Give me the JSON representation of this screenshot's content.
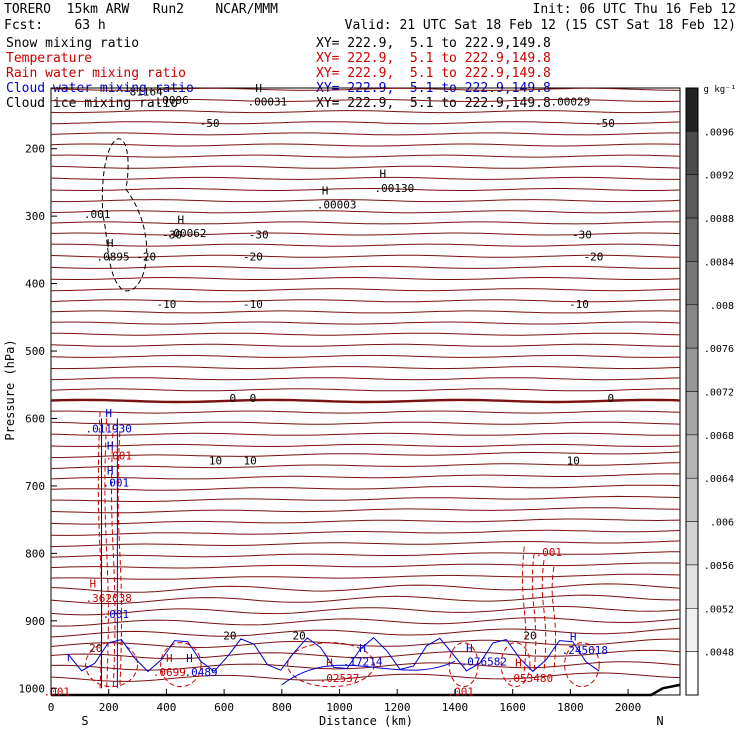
{
  "header": {
    "model": "TORERO  15km ARW   Run2    NCAR/MMM",
    "init": "Init: 06 UTC Thu 16 Feb 12",
    "fcst": "Fcst:    63 h",
    "valid": "Valid: 21 UTC Sat 18 Feb 12 (15 CST Sat 18 Feb 12)",
    "fields": [
      {
        "name": "Snow mixing ratio",
        "xy": "XY= 222.9,  5.1 to 222.9,149.8",
        "color": "#000000"
      },
      {
        "name": "Temperature",
        "xy": "XY= 222.9,  5.1 to 222.9,149.8",
        "color": "#cc0000"
      },
      {
        "name": "Rain water mixing ratio",
        "xy": "XY= 222.9,  5.1 to 222.9,149.8",
        "color": "#cc0000"
      },
      {
        "name": "Cloud water mixing ratio",
        "xy": "XY= 222.9,  5.1 to 222.9,149.8",
        "color": "#0000cc"
      },
      {
        "name": "Cloud ice mixing ratio",
        "xy": "XY= 222.9,  5.1 to 222.9,149.8",
        "color": "#000000"
      }
    ]
  },
  "chart_data": {
    "type": "contour",
    "ylabel": "Pressure (hPa)",
    "xlabel": "Distance (km)",
    "x_start_label": "S",
    "x_end_label": "N",
    "xlim": [
      0,
      2180
    ],
    "ylim": [
      1010,
      110
    ],
    "x_ticks": [
      0,
      200,
      400,
      600,
      800,
      1000,
      1200,
      1400,
      1600,
      1800,
      2000
    ],
    "y_ticks": [
      200,
      300,
      400,
      500,
      600,
      700,
      800,
      900,
      1000
    ],
    "temperature_levels": [
      {
        "label": "-50",
        "p": 162,
        "x": [
          550,
          1920
        ]
      },
      {
        "label": "-30",
        "p": 327,
        "x": [
          420,
          720,
          1840
        ]
      },
      {
        "label": "-20",
        "p": 360,
        "x": [
          330,
          700,
          1880
        ]
      },
      {
        "label": "-10",
        "p": 430,
        "x": [
          400,
          700,
          1830
        ]
      },
      {
        "label": "0",
        "p": 570,
        "x": [
          630,
          700,
          1940
        ]
      },
      {
        "label": "10",
        "p": 662,
        "x": [
          570,
          690,
          1810
        ]
      },
      {
        "label": "20",
        "p": 922,
        "x": [
          620,
          860,
          1660
        ]
      }
    ],
    "temperature_tilted_levels": [
      {
        "label": "-30",
        "x": [
          300,
          1820
        ],
        "p": [
          330,
          330
        ]
      },
      {
        "label": "-10",
        "x": [
          330,
          1830
        ],
        "p": [
          460,
          460
        ]
      }
    ],
    "temperature_color": "#7a1010",
    "shading_label": "g kg⁻¹",
    "shading_levels": [
      ".0048",
      ".0052",
      ".0056",
      ".006",
      ".0064",
      ".0068",
      ".0072",
      ".0076",
      ".008",
      ".0084",
      ".0088",
      ".0092",
      ".0096"
    ],
    "labels": [
      {
        "text": ".001",
        "x": 160,
        "p": 297,
        "color": "#000000"
      },
      {
        "text": "H",
        "x": 205,
        "p": 340,
        "color": "#000000"
      },
      {
        "text": ".0895",
        "x": 215,
        "p": 360,
        "color": "#000000"
      },
      {
        "text": "H",
        "x": 450,
        "p": 305,
        "color": "#000000"
      },
      {
        "text": ".00062",
        "x": 470,
        "p": 325,
        "color": "#000000"
      },
      {
        "text": "H",
        "x": 950,
        "p": 262,
        "color": "#000000"
      },
      {
        "text": ".00003",
        "x": 990,
        "p": 283,
        "color": "#000000"
      },
      {
        "text": "H",
        "x": 1150,
        "p": 237,
        "color": "#000000"
      },
      {
        "text": ".00130",
        "x": 1190,
        "p": 258,
        "color": "#000000"
      },
      {
        "text": "H",
        "x": 720,
        "p": 110,
        "color": "#000000"
      },
      {
        "text": ".00031",
        "x": 750,
        "p": 130,
        "color": "#000000"
      },
      {
        "text": ".00029",
        "x": 1800,
        "p": 130,
        "color": "#000000"
      },
      {
        "text": "81164",
        "x": 330,
        "p": 115,
        "color": "#000000"
      },
      {
        "text": ".0096",
        "x": 420,
        "p": 128,
        "color": "#000000"
      },
      {
        "text": "H",
        "x": 200,
        "p": 592,
        "color": "#0000cc"
      },
      {
        "text": ".011930",
        "x": 200,
        "p": 615,
        "color": "#0000cc"
      },
      {
        "text": ".001",
        "x": 235,
        "p": 655,
        "color": "#cc0000"
      },
      {
        "text": "H",
        "x": 205,
        "p": 640,
        "color": "#0000cc"
      },
      {
        "text": "H",
        "x": 205,
        "p": 677,
        "color": "#0000cc"
      },
      {
        "text": ".001",
        "x": 225,
        "p": 695,
        "color": "#0000cc"
      },
      {
        "text": "H",
        "x": 145,
        "p": 845,
        "color": "#cc0000"
      },
      {
        "text": ".362038",
        "x": 200,
        "p": 866,
        "color": "#cc0000"
      },
      {
        "text": ".001",
        "x": 225,
        "p": 890,
        "color": "#0000cc"
      },
      {
        "text": ".001",
        "x": 1725,
        "p": 798,
        "color": "#cc0000"
      },
      {
        "text": "20",
        "x": 155,
        "p": 940,
        "color": "#7a1010"
      },
      {
        "text": "H",
        "x": 410,
        "p": 955,
        "color": "#cc0000"
      },
      {
        "text": ".0699",
        "x": 410,
        "p": 976,
        "color": "#cc0000"
      },
      {
        "text": "H",
        "x": 480,
        "p": 955,
        "color": "#0000cc"
      },
      {
        "text": ".0489",
        "x": 520,
        "p": 976,
        "color": "#0000cc"
      },
      {
        "text": "H",
        "x": 965,
        "p": 962,
        "color": "#cc0000"
      },
      {
        "text": ".02537",
        "x": 1000,
        "p": 985,
        "color": "#cc0000"
      },
      {
        "text": "H",
        "x": 1080,
        "p": 940,
        "color": "#0000cc"
      },
      {
        "text": ".17214",
        "x": 1080,
        "p": 960,
        "color": "#0000cc"
      },
      {
        "text": "H",
        "x": 1450,
        "p": 940,
        "color": "#0000cc"
      },
      {
        "text": ".076582",
        "x": 1500,
        "p": 960,
        "color": "#0000cc"
      },
      {
        "text": "H",
        "x": 1620,
        "p": 962,
        "color": "#cc0000"
      },
      {
        "text": ".053480",
        "x": 1660,
        "p": 985,
        "color": "#cc0000"
      },
      {
        "text": "H",
        "x": 1810,
        "p": 923,
        "color": "#0000cc"
      },
      {
        "text": ".245618",
        "x": 1850,
        "p": 943,
        "color": "#0000cc"
      },
      {
        "text": ".001",
        "x": 1420,
        "p": 1005,
        "color": "#cc0000"
      },
      {
        "text": ".001",
        "x": 20,
        "p": 1005,
        "color": "#cc0000"
      }
    ]
  }
}
